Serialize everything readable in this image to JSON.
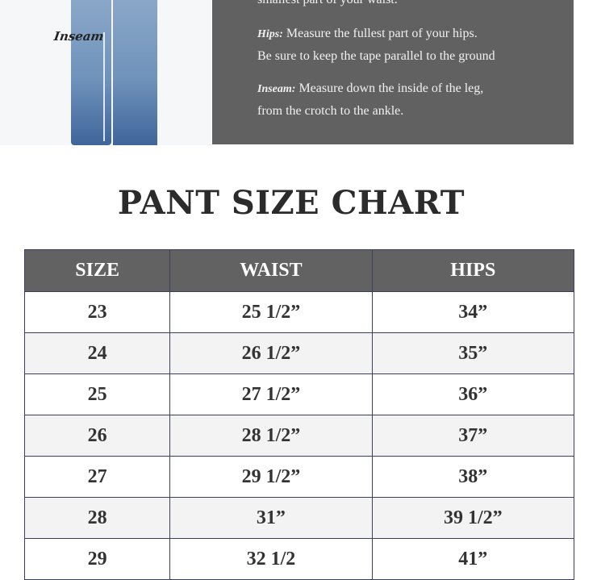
{
  "image": {
    "inseam_label": "Inseam"
  },
  "instructions": {
    "waist_tail": "smallest part of your waist.",
    "hips_label": "Hips:",
    "hips_line1": "Measure the fullest part of your hips.",
    "hips_line2": "Be sure to keep the tape parallel to the ground",
    "inseam_label": "Inseam:",
    "inseam_line1": "Measure down the inside of the leg,",
    "inseam_line2": "from the crotch to the ankle."
  },
  "title": "PANT SIZE CHART",
  "table": {
    "headers": [
      "SIZE",
      "WAIST",
      "HIPS"
    ],
    "rows": [
      [
        "23",
        "25 1/2”",
        "34”"
      ],
      [
        "24",
        "26 1/2”",
        "35”"
      ],
      [
        "25",
        "27 1/2”",
        "36”"
      ],
      [
        "26",
        "28 1/2”",
        "37”"
      ],
      [
        "27",
        "29 1/2”",
        "38”"
      ],
      [
        "28",
        "31”",
        "39 1/2”"
      ],
      [
        "29",
        "32 1/2",
        "41”"
      ]
    ]
  },
  "colors": {
    "panel": "#616161",
    "header": "#626262",
    "border": "#3d3d5c",
    "alt_row": "#f3f3f3"
  }
}
